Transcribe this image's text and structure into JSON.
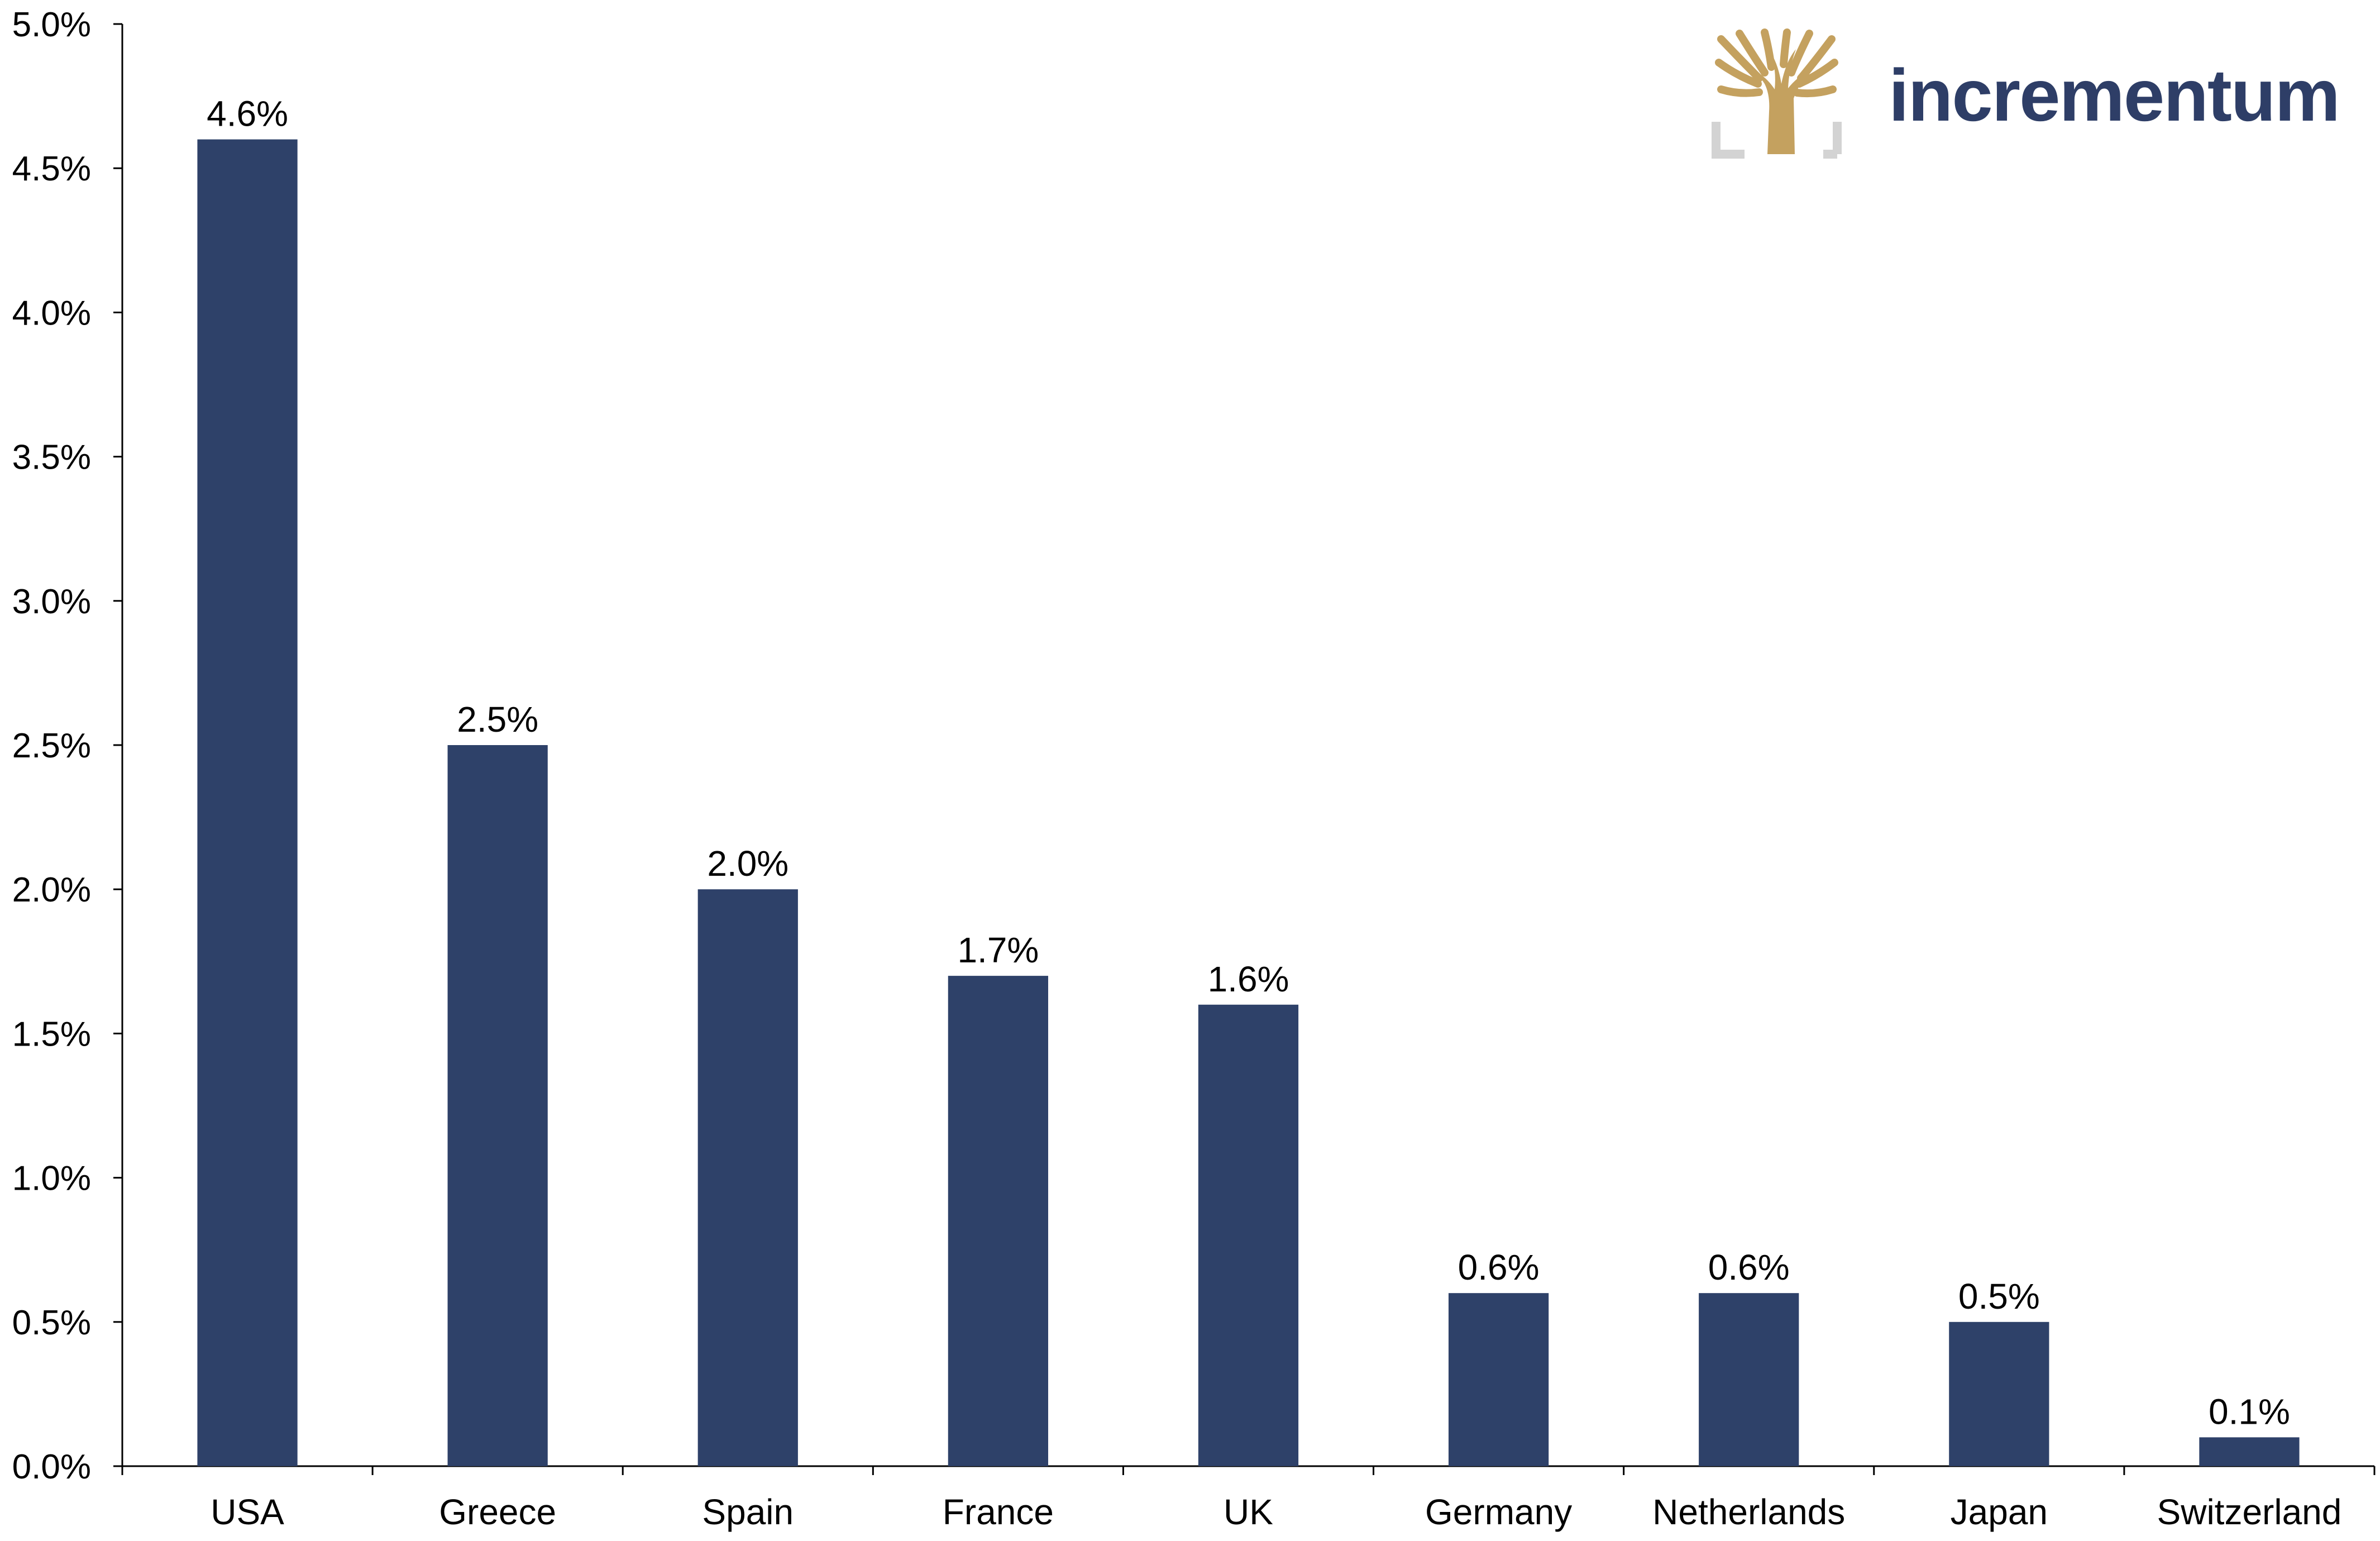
{
  "brand": {
    "name": "incrementum",
    "text_color": "#2e3e67",
    "emblem_gold": "#c4a15f",
    "emblem_gray": "#d3d3d3",
    "icon": "tree-emblem-icon"
  },
  "chart_data": {
    "type": "bar",
    "title": "",
    "xlabel": "",
    "ylabel": "",
    "categories": [
      "USA",
      "Greece",
      "Spain",
      "France",
      "UK",
      "Germany",
      "Netherlands",
      "Japan",
      "Switzerland"
    ],
    "values": [
      4.6,
      2.5,
      2.0,
      1.7,
      1.6,
      0.6,
      0.6,
      0.5,
      0.1
    ],
    "value_labels": [
      "4.6%",
      "2.5%",
      "2.0%",
      "1.7%",
      "1.6%",
      "0.6%",
      "0.6%",
      "0.5%",
      "0.1%"
    ],
    "ylim": [
      0,
      5.0
    ],
    "y_ticks": [
      0,
      0.5,
      1.0,
      1.5,
      2.0,
      2.5,
      3.0,
      3.5,
      4.0,
      4.5,
      5.0
    ],
    "y_tick_labels": [
      "0.0%",
      "0.5%",
      "1.0%",
      "1.5%",
      "2.0%",
      "2.5%",
      "3.0%",
      "3.5%",
      "4.0%",
      "4.5%",
      "5.0%"
    ],
    "bar_color": "#2e4169",
    "grid": false,
    "legend": "none"
  }
}
